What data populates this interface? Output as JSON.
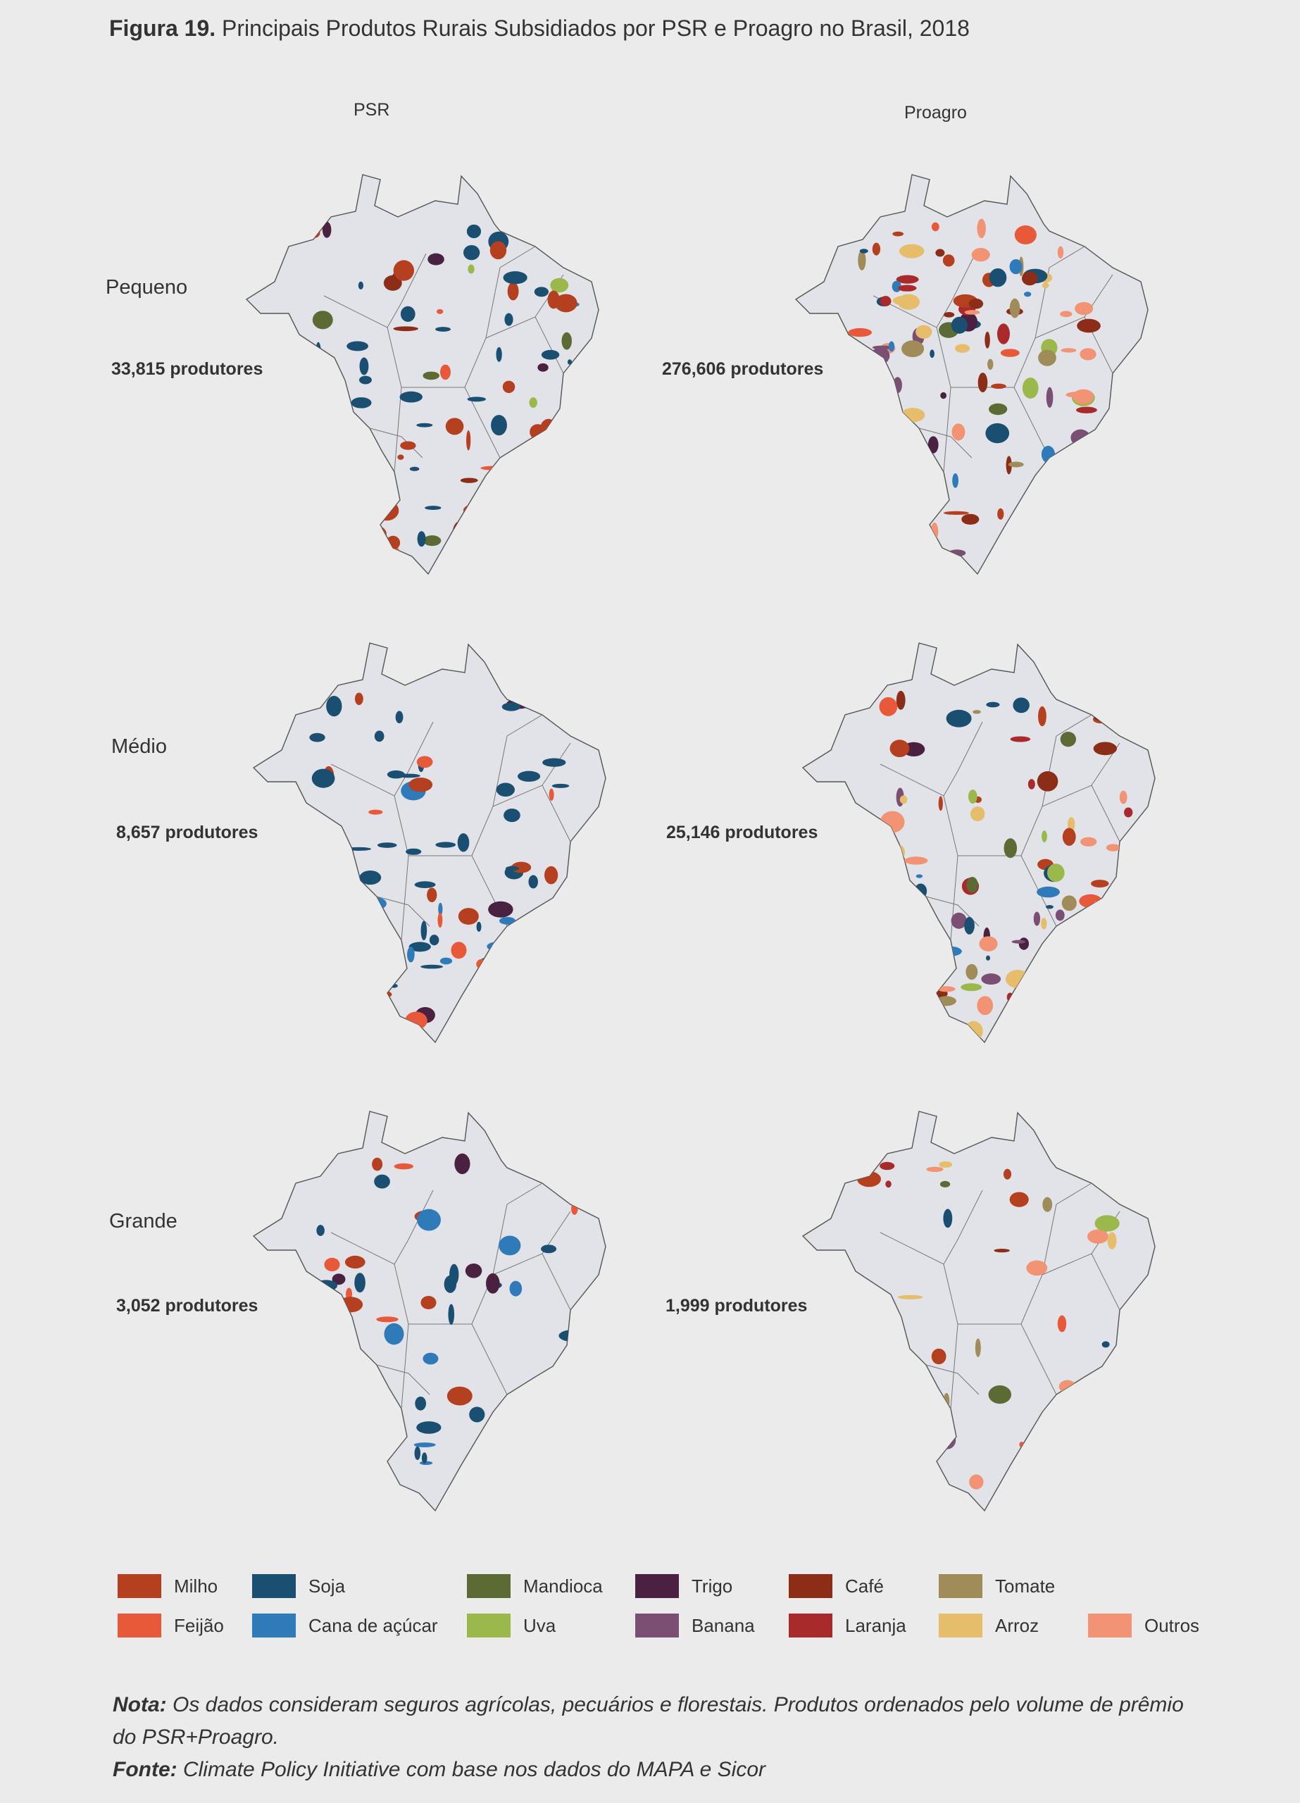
{
  "figure": {
    "title_bold": "Figura 19.",
    "title_rest": " Principais Produtos Rurais Subsidiados por PSR e Proagro no Brasil, 2018"
  },
  "columns": {
    "psr": "PSR",
    "proagro": "Proagro"
  },
  "rows": [
    {
      "label": "Pequeno",
      "psr_count": "33,815 produtores",
      "proagro_count": "276,606 produtores"
    },
    {
      "label": "Médio",
      "psr_count": "8,657 produtores",
      "proagro_count": "25,146 produtores"
    },
    {
      "label": "Grande",
      "psr_count": "3,052 produtores",
      "proagro_count": "1,999 produtores"
    }
  ],
  "legend": [
    {
      "label": "Milho",
      "color": "#b5401f"
    },
    {
      "label": "Feijão",
      "color": "#e8593a"
    },
    {
      "label": "Soja",
      "color": "#1b4f72"
    },
    {
      "label": "Cana de açúcar",
      "color": "#2f7ab8"
    },
    {
      "label": "Mandioca",
      "color": "#5c6b33"
    },
    {
      "label": "Uva",
      "color": "#9bb84a"
    },
    {
      "label": "Trigo",
      "color": "#4a2140"
    },
    {
      "label": "Banana",
      "color": "#7a4f73"
    },
    {
      "label": "Café",
      "color": "#8c2e17"
    },
    {
      "label": "Laranja",
      "color": "#a82a2a"
    },
    {
      "label": "Tomate",
      "color": "#a08c58"
    },
    {
      "label": "Arroz",
      "color": "#e5bd6b"
    },
    {
      "label": "Outros",
      "color": "#f29373"
    }
  ],
  "note": {
    "nota_label": "Nota:",
    "nota_text": " Os dados consideram seguros agrícolas, pecuários e florestais. Produtos ordenados pelo volume de prêmio do PSR+Proagro.",
    "fonte_label": "Fonte:",
    "fonte_text": " Climate Policy Initiative com base nos dados do MAPA e Sicor"
  }
}
